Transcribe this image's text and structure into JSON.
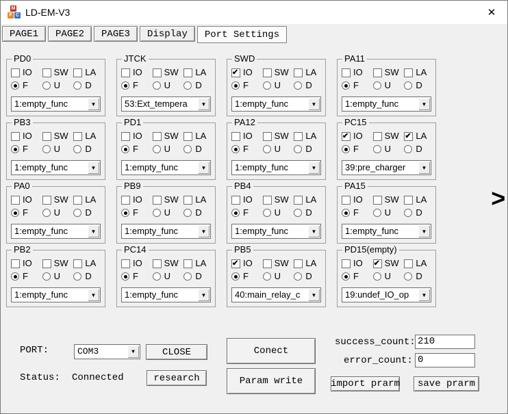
{
  "window": {
    "title": "LD-EM-V3",
    "close_icon": "✕",
    "app_icon_letters": {
      "m": "M",
      "f": "F",
      "c": "C"
    }
  },
  "tabs": [
    {
      "label": "PAGE1",
      "active": false
    },
    {
      "label": "PAGE2",
      "active": false
    },
    {
      "label": "PAGE3",
      "active": false
    },
    {
      "label": "Display",
      "active": false
    },
    {
      "label": "Port Settings",
      "active": true
    }
  ],
  "pin_controls": {
    "checkbox_labels": [
      "IO",
      "SW",
      "LA"
    ],
    "radio_labels": [
      "F",
      "U",
      "D"
    ]
  },
  "pins": [
    {
      "name": "PD0",
      "io": false,
      "sw": false,
      "la": false,
      "fud": "F",
      "func": "1:empty_func"
    },
    {
      "name": "JTCK",
      "io": false,
      "sw": false,
      "la": false,
      "fud": "F",
      "func": "53:Ext_tempera"
    },
    {
      "name": "SWD",
      "io": true,
      "sw": false,
      "la": false,
      "fud": "F",
      "func": "1:empty_func"
    },
    {
      "name": "PA11",
      "io": false,
      "sw": false,
      "la": false,
      "fud": "F",
      "func": "1:empty_func"
    },
    {
      "name": "PB3",
      "io": false,
      "sw": false,
      "la": false,
      "fud": "F",
      "func": "1:empty_func"
    },
    {
      "name": "PD1",
      "io": false,
      "sw": false,
      "la": false,
      "fud": "F",
      "func": "1:empty_func"
    },
    {
      "name": "PA12",
      "io": false,
      "sw": false,
      "la": false,
      "fud": "F",
      "func": "1:empty_func"
    },
    {
      "name": "PC15",
      "io": true,
      "sw": false,
      "la": true,
      "fud": "F",
      "func": "39:pre_charger"
    },
    {
      "name": "PA0",
      "io": false,
      "sw": false,
      "la": false,
      "fud": "F",
      "func": "1:empty_func"
    },
    {
      "name": "PB9",
      "io": false,
      "sw": false,
      "la": false,
      "fud": "F",
      "func": "1:empty_func"
    },
    {
      "name": "PB4",
      "io": false,
      "sw": false,
      "la": false,
      "fud": "F",
      "func": "1:empty_func"
    },
    {
      "name": "PA15",
      "io": false,
      "sw": false,
      "la": false,
      "fud": "F",
      "func": "1:empty_func"
    },
    {
      "name": "PB2",
      "io": false,
      "sw": false,
      "la": false,
      "fud": "F",
      "func": "1:empty_func"
    },
    {
      "name": "PC14",
      "io": false,
      "sw": false,
      "la": false,
      "fud": "F",
      "func": "1:empty_func"
    },
    {
      "name": "PB5",
      "io": true,
      "sw": false,
      "la": false,
      "fud": "F",
      "func": "40:main_relay_c"
    },
    {
      "name": "PD15(empty)",
      "io": false,
      "sw": true,
      "la": false,
      "fud": "F",
      "func": "19:undef_IO_op"
    }
  ],
  "next_arrow": ">",
  "dropdown_arrow": "▼",
  "bottom": {
    "port_label": "PORT:",
    "port_value": "COM3",
    "close_button": "CLOSE",
    "status_label": "Status:",
    "status_value": "Connected",
    "research_button": "research",
    "connect_button": "Conect",
    "param_write_button": "Param write",
    "success_count_label": "success_count:",
    "success_count_value": "210",
    "error_count_label": "error_count:",
    "error_count_value": "0",
    "import_button": "import prarm",
    "save_button": "save prarm"
  },
  "colors": {
    "window_bg": "#f0f0f0",
    "titlebar_bg": "#ffffff",
    "field_bg": "#ffffff",
    "text": "#000000"
  }
}
